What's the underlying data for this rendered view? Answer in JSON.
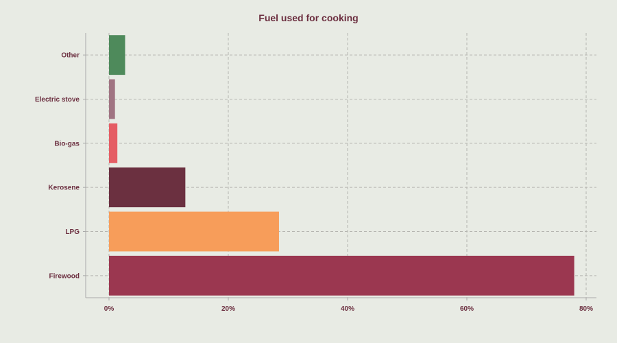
{
  "chart_data": {
    "type": "bar",
    "orientation": "horizontal",
    "title": "Fuel used for cooking",
    "xlabel": "",
    "ylabel": "",
    "categories": [
      "Firewood",
      "LPG",
      "Kerosene",
      "Bio-gas",
      "Electric stove",
      "Other"
    ],
    "values": [
      78.0,
      28.5,
      12.8,
      1.4,
      1.0,
      2.7
    ],
    "colors": [
      "#9b3750",
      "#f79d5a",
      "#6b3040",
      "#e55d64",
      "#a07482",
      "#4e8a5b"
    ],
    "xlim": [
      0,
      80
    ],
    "x_ticks": [
      0,
      20,
      40,
      60,
      80
    ],
    "x_tick_labels": [
      "0%",
      "20%",
      "40%",
      "60%",
      "80%"
    ],
    "grid": true,
    "legend": "none"
  }
}
